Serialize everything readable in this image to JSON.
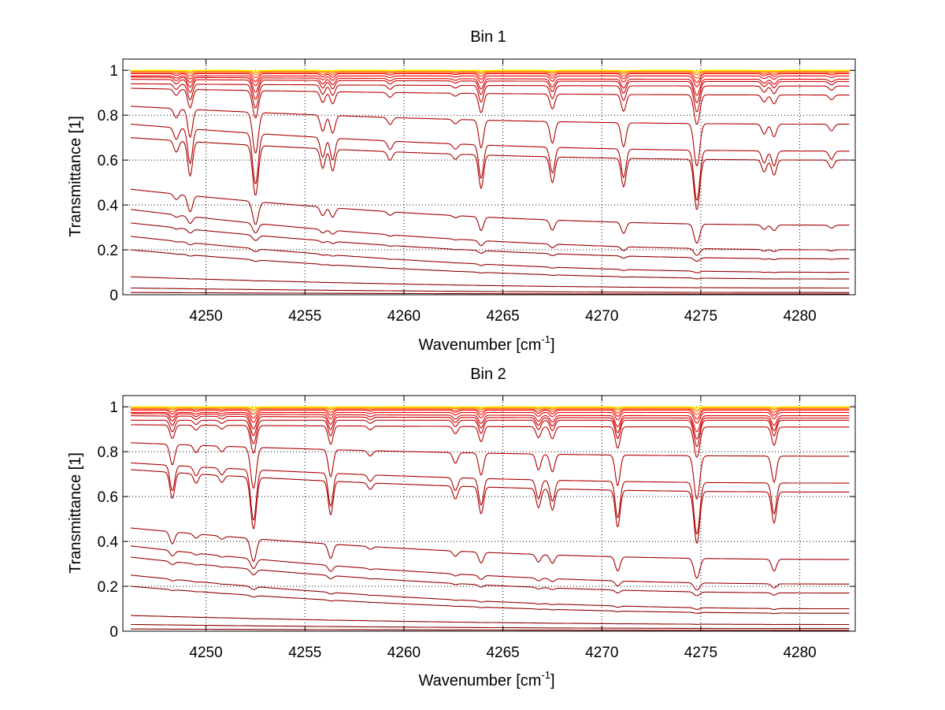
{
  "chart_data": [
    {
      "type": "line",
      "title": "Bin 1",
      "xlabel": "Wavenumber [cm",
      "xlabel_sup": "-1",
      "xlabel_end": "]",
      "ylabel": "Transmittance [1]",
      "xlim": [
        4245.8,
        4282.8
      ],
      "ylim": [
        0,
        1.05
      ],
      "xticks": [
        4250,
        4255,
        4260,
        4265,
        4270,
        4275,
        4280
      ],
      "xtick_labels": [
        "4250",
        "4255",
        "4260",
        "4265",
        "4270",
        "4275",
        "4280"
      ],
      "yticks": [
        0,
        0.2,
        0.4,
        0.6,
        0.8,
        1
      ],
      "ytick_labels": [
        "0",
        "0.2",
        "0.4",
        "0.6",
        "0.8",
        "1"
      ],
      "grid": true,
      "x_start": 4246.2,
      "x_end": 4282.5,
      "absorption_lines": [
        {
          "x": 4248.5,
          "depth": 0.1,
          "width": 0.12
        },
        {
          "x": 4249.2,
          "depth": 0.3,
          "width": 0.12
        },
        {
          "x": 4252.5,
          "depth": 0.45,
          "width": 0.14
        },
        {
          "x": 4255.9,
          "depth": 0.18,
          "width": 0.12
        },
        {
          "x": 4256.4,
          "depth": 0.2,
          "width": 0.12
        },
        {
          "x": 4259.3,
          "depth": 0.08,
          "width": 0.12
        },
        {
          "x": 4262.6,
          "depth": 0.05,
          "width": 0.12
        },
        {
          "x": 4263.9,
          "depth": 0.32,
          "width": 0.12
        },
        {
          "x": 4267.5,
          "depth": 0.25,
          "width": 0.12
        },
        {
          "x": 4271.1,
          "depth": 0.28,
          "width": 0.12
        },
        {
          "x": 4274.8,
          "depth": 0.5,
          "width": 0.14
        },
        {
          "x": 4278.2,
          "depth": 0.12,
          "width": 0.12
        },
        {
          "x": 4278.7,
          "depth": 0.15,
          "width": 0.12
        },
        {
          "x": 4281.6,
          "depth": 0.08,
          "width": 0.12
        }
      ],
      "series": [
        {
          "start": 1.0,
          "end": 1.0,
          "strength": 0.005,
          "color": "#ffff00"
        },
        {
          "start": 1.0,
          "end": 1.0,
          "strength": 0.01,
          "color": "#ffd700"
        },
        {
          "start": 0.998,
          "end": 0.998,
          "strength": 0.02,
          "color": "#ffaa00"
        },
        {
          "start": 0.995,
          "end": 0.995,
          "strength": 0.03,
          "color": "#ff7f00"
        },
        {
          "start": 0.99,
          "end": 0.99,
          "strength": 0.05,
          "color": "#ff4000"
        },
        {
          "start": 0.985,
          "end": 0.985,
          "strength": 0.08,
          "color": "#ff0000"
        },
        {
          "start": 0.975,
          "end": 0.975,
          "strength": 0.1,
          "color": "#ee0000"
        },
        {
          "start": 0.97,
          "end": 0.96,
          "strength": 0.15,
          "color": "#dd0000"
        },
        {
          "start": 0.96,
          "end": 0.95,
          "strength": 0.2,
          "color": "#cc0000"
        },
        {
          "start": 0.94,
          "end": 0.93,
          "strength": 0.25,
          "color": "#c00000"
        },
        {
          "start": 0.92,
          "end": 0.89,
          "strength": 0.3,
          "color": "#b80000"
        },
        {
          "start": 0.84,
          "end": 0.76,
          "strength": 0.5,
          "color": "#b00000"
        },
        {
          "start": 0.76,
          "end": 0.64,
          "strength": 0.7,
          "color": "#b00000"
        },
        {
          "start": 0.7,
          "end": 0.6,
          "strength": 0.75,
          "color": "#a80000"
        },
        {
          "start": 0.47,
          "end": 0.31,
          "strength": 0.55,
          "color": "#a00000"
        },
        {
          "start": 0.38,
          "end": 0.2,
          "strength": 0.3,
          "color": "#a00000"
        },
        {
          "start": 0.32,
          "end": 0.16,
          "strength": 0.2,
          "color": "#980000"
        },
        {
          "start": 0.26,
          "end": 0.1,
          "strength": 0.15,
          "color": "#980000"
        },
        {
          "start": 0.2,
          "end": 0.07,
          "strength": 0.1,
          "color": "#900000"
        },
        {
          "start": 0.08,
          "end": 0.03,
          "strength": 0.05,
          "color": "#900000"
        },
        {
          "start": 0.03,
          "end": 0.01,
          "strength": 0.02,
          "color": "#880000"
        },
        {
          "start": 0.01,
          "end": 0.003,
          "strength": 0.01,
          "color": "#800000"
        }
      ]
    },
    {
      "type": "line",
      "title": "Bin 2",
      "xlabel": "Wavenumber [cm",
      "xlabel_sup": "-1",
      "xlabel_end": "]",
      "ylabel": "Transmittance [1]",
      "xlim": [
        4245.8,
        4282.8
      ],
      "ylim": [
        0,
        1.05
      ],
      "xticks": [
        4250,
        4255,
        4260,
        4265,
        4270,
        4275,
        4280
      ],
      "xtick_labels": [
        "4250",
        "4255",
        "4260",
        "4265",
        "4270",
        "4275",
        "4280"
      ],
      "yticks": [
        0,
        0.2,
        0.4,
        0.6,
        0.8,
        1
      ],
      "ytick_labels": [
        "0",
        "0.2",
        "0.4",
        "0.6",
        "0.8",
        "1"
      ],
      "grid": true,
      "x_start": 4246.2,
      "x_end": 4282.5,
      "absorption_lines": [
        {
          "x": 4248.3,
          "depth": 0.22,
          "width": 0.12
        },
        {
          "x": 4249.5,
          "depth": 0.08,
          "width": 0.12
        },
        {
          "x": 4250.8,
          "depth": 0.06,
          "width": 0.12
        },
        {
          "x": 4252.4,
          "depth": 0.45,
          "width": 0.14
        },
        {
          "x": 4256.3,
          "depth": 0.3,
          "width": 0.12
        },
        {
          "x": 4258.3,
          "depth": 0.06,
          "width": 0.12
        },
        {
          "x": 4262.6,
          "depth": 0.12,
          "width": 0.12
        },
        {
          "x": 4263.9,
          "depth": 0.25,
          "width": 0.12
        },
        {
          "x": 4266.8,
          "depth": 0.18,
          "width": 0.12
        },
        {
          "x": 4267.5,
          "depth": 0.2,
          "width": 0.12
        },
        {
          "x": 4270.8,
          "depth": 0.35,
          "width": 0.12
        },
        {
          "x": 4274.8,
          "depth": 0.5,
          "width": 0.14
        },
        {
          "x": 4278.7,
          "depth": 0.3,
          "width": 0.12
        }
      ],
      "series": [
        {
          "start": 1.0,
          "end": 1.0,
          "strength": 0.005,
          "color": "#ffff00"
        },
        {
          "start": 1.0,
          "end": 1.0,
          "strength": 0.01,
          "color": "#ffd700"
        },
        {
          "start": 0.998,
          "end": 0.998,
          "strength": 0.02,
          "color": "#ffaa00"
        },
        {
          "start": 0.995,
          "end": 0.995,
          "strength": 0.03,
          "color": "#ff7f00"
        },
        {
          "start": 0.99,
          "end": 0.99,
          "strength": 0.05,
          "color": "#ff4000"
        },
        {
          "start": 0.985,
          "end": 0.985,
          "strength": 0.08,
          "color": "#ff0000"
        },
        {
          "start": 0.975,
          "end": 0.975,
          "strength": 0.1,
          "color": "#ee0000"
        },
        {
          "start": 0.97,
          "end": 0.96,
          "strength": 0.15,
          "color": "#dd0000"
        },
        {
          "start": 0.96,
          "end": 0.95,
          "strength": 0.2,
          "color": "#cc0000"
        },
        {
          "start": 0.94,
          "end": 0.94,
          "strength": 0.25,
          "color": "#c00000"
        },
        {
          "start": 0.92,
          "end": 0.91,
          "strength": 0.3,
          "color": "#b80000"
        },
        {
          "start": 0.84,
          "end": 0.78,
          "strength": 0.5,
          "color": "#b00000"
        },
        {
          "start": 0.75,
          "end": 0.66,
          "strength": 0.7,
          "color": "#b00000"
        },
        {
          "start": 0.72,
          "end": 0.62,
          "strength": 0.75,
          "color": "#a80000"
        },
        {
          "start": 0.46,
          "end": 0.32,
          "strength": 0.55,
          "color": "#a00000"
        },
        {
          "start": 0.38,
          "end": 0.21,
          "strength": 0.3,
          "color": "#a00000"
        },
        {
          "start": 0.33,
          "end": 0.17,
          "strength": 0.2,
          "color": "#980000"
        },
        {
          "start": 0.25,
          "end": 0.1,
          "strength": 0.15,
          "color": "#980000"
        },
        {
          "start": 0.2,
          "end": 0.08,
          "strength": 0.1,
          "color": "#900000"
        },
        {
          "start": 0.07,
          "end": 0.03,
          "strength": 0.05,
          "color": "#900000"
        },
        {
          "start": 0.03,
          "end": 0.012,
          "strength": 0.02,
          "color": "#880000"
        },
        {
          "start": 0.01,
          "end": 0.004,
          "strength": 0.01,
          "color": "#800000"
        }
      ]
    }
  ]
}
